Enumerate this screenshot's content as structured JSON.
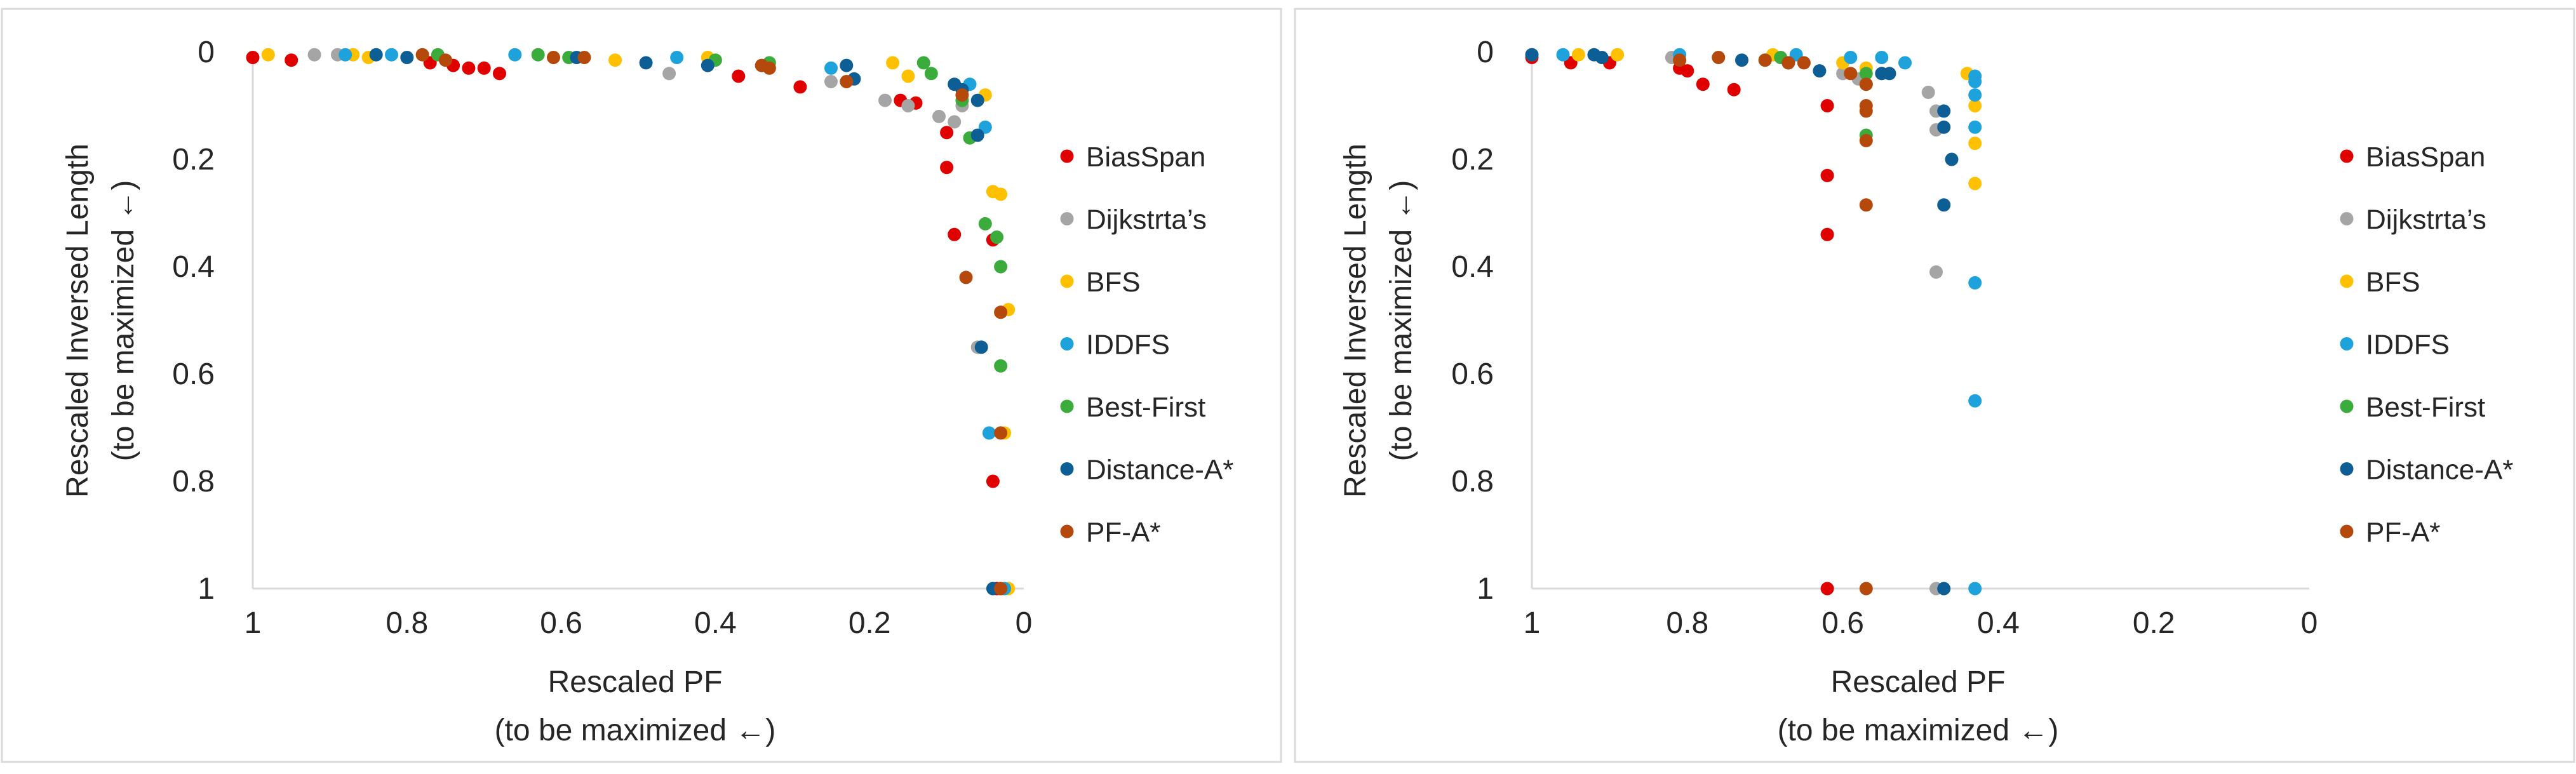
{
  "colors": {
    "BiasSpan": "#e00000",
    "Dijkstrta’s": "#a5a5a5",
    "BFS": "#ffc000",
    "IDDFS": "#1ea2dc",
    "Best-First": "#3bab3b",
    "Distance-A*": "#0e5e96",
    "PF-A*": "#b5490c"
  },
  "chart_data": [
    {
      "type": "scatter",
      "title": "",
      "xlabel_line1": "Rescaled PF",
      "xlabel_line2": "(to be maximized ←)",
      "ylabel_line1": "Rescaled Inversed Length",
      "ylabel_line2": "(to be maximized ←)",
      "x_reversed": true,
      "y_reversed": true,
      "xlim": [
        0,
        1
      ],
      "ylim": [
        0,
        1
      ],
      "x_ticks": [
        "1",
        "0.8",
        "0.6",
        "0.4",
        "0.2",
        "0"
      ],
      "y_ticks": [
        "0",
        "0.2",
        "0.4",
        "0.6",
        "0.8",
        "1"
      ],
      "legend_position": "right",
      "series": [
        {
          "name": "BiasSpan",
          "points": [
            [
              1,
              0.01
            ],
            [
              0.95,
              0.015
            ],
            [
              0.77,
              0.02
            ],
            [
              0.74,
              0.025
            ],
            [
              0.72,
              0.03
            ],
            [
              0.7,
              0.03
            ],
            [
              0.68,
              0.04
            ],
            [
              0.37,
              0.045
            ],
            [
              0.29,
              0.065
            ],
            [
              0.16,
              0.09
            ],
            [
              0.14,
              0.095
            ],
            [
              0.1,
              0.15
            ],
            [
              0.1,
              0.215
            ],
            [
              0.09,
              0.34
            ],
            [
              0.04,
              0.35
            ],
            [
              0.04,
              0.8
            ],
            [
              0.035,
              1.0
            ]
          ]
        },
        {
          "name": "Dijkstrta’s",
          "points": [
            [
              0.92,
              0.005
            ],
            [
              0.89,
              0.005
            ],
            [
              0.46,
              0.04
            ],
            [
              0.25,
              0.055
            ],
            [
              0.18,
              0.09
            ],
            [
              0.15,
              0.1
            ],
            [
              0.11,
              0.12
            ],
            [
              0.09,
              0.13
            ],
            [
              0.08,
              0.1
            ],
            [
              0.06,
              0.55
            ],
            [
              0.03,
              1.0
            ]
          ]
        },
        {
          "name": "BFS",
          "points": [
            [
              0.98,
              0.005
            ],
            [
              0.87,
              0.005
            ],
            [
              0.85,
              0.01
            ],
            [
              0.53,
              0.015
            ],
            [
              0.41,
              0.01
            ],
            [
              0.17,
              0.02
            ],
            [
              0.15,
              0.045
            ],
            [
              0.05,
              0.08
            ],
            [
              0.04,
              0.26
            ],
            [
              0.03,
              0.265
            ],
            [
              0.02,
              0.48
            ],
            [
              0.025,
              0.71
            ],
            [
              0.02,
              1.0
            ]
          ]
        },
        {
          "name": "IDDFS",
          "points": [
            [
              0.88,
              0.005
            ],
            [
              0.82,
              0.005
            ],
            [
              0.66,
              0.005
            ],
            [
              0.45,
              0.01
            ],
            [
              0.25,
              0.03
            ],
            [
              0.07,
              0.06
            ],
            [
              0.05,
              0.14
            ],
            [
              0.045,
              0.71
            ],
            [
              0.025,
              1.0
            ]
          ]
        },
        {
          "name": "Best-First",
          "points": [
            [
              0.76,
              0.005
            ],
            [
              0.63,
              0.005
            ],
            [
              0.59,
              0.01
            ],
            [
              0.4,
              0.015
            ],
            [
              0.33,
              0.02
            ],
            [
              0.13,
              0.02
            ],
            [
              0.12,
              0.04
            ],
            [
              0.08,
              0.09
            ],
            [
              0.07,
              0.16
            ],
            [
              0.05,
              0.32
            ],
            [
              0.035,
              0.345
            ],
            [
              0.03,
              0.4
            ],
            [
              0.03,
              0.585
            ]
          ]
        },
        {
          "name": "Distance-A*",
          "points": [
            [
              0.84,
              0.005
            ],
            [
              0.8,
              0.01
            ],
            [
              0.58,
              0.01
            ],
            [
              0.49,
              0.02
            ],
            [
              0.41,
              0.025
            ],
            [
              0.23,
              0.025
            ],
            [
              0.22,
              0.05
            ],
            [
              0.09,
              0.06
            ],
            [
              0.08,
              0.07
            ],
            [
              0.06,
              0.09
            ],
            [
              0.06,
              0.155
            ],
            [
              0.055,
              0.55
            ],
            [
              0.04,
              1.0
            ]
          ]
        },
        {
          "name": "PF-A*",
          "points": [
            [
              0.78,
              0.005
            ],
            [
              0.75,
              0.015
            ],
            [
              0.61,
              0.01
            ],
            [
              0.57,
              0.01
            ],
            [
              0.34,
              0.025
            ],
            [
              0.33,
              0.03
            ],
            [
              0.23,
              0.055
            ],
            [
              0.08,
              0.08
            ],
            [
              0.075,
              0.42
            ],
            [
              0.03,
              0.485
            ],
            [
              0.03,
              0.71
            ],
            [
              0.03,
              1.0
            ]
          ]
        }
      ]
    },
    {
      "type": "scatter",
      "title": "",
      "xlabel_line1": "Rescaled PF",
      "xlabel_line2": "(to be maximized ←)",
      "ylabel_line1": "Rescaled Inversed Length",
      "ylabel_line2": "(to be maximized ←)",
      "x_reversed": true,
      "y_reversed": true,
      "xlim": [
        0,
        1
      ],
      "ylim": [
        0,
        1
      ],
      "x_ticks": [
        "1",
        "0.8",
        "0.6",
        "0.4",
        "0.2",
        "0"
      ],
      "y_ticks": [
        "0",
        "0.2",
        "0.4",
        "0.6",
        "0.8",
        "1"
      ],
      "legend_position": "right",
      "series": [
        {
          "name": "BiasSpan",
          "points": [
            [
              1,
              0.01
            ],
            [
              0.95,
              0.02
            ],
            [
              0.9,
              0.02
            ],
            [
              0.81,
              0.03
            ],
            [
              0.8,
              0.035
            ],
            [
              0.78,
              0.06
            ],
            [
              0.74,
              0.07
            ],
            [
              0.62,
              0.1
            ],
            [
              0.62,
              0.23
            ],
            [
              0.62,
              0.34
            ],
            [
              0.62,
              1.0
            ]
          ]
        },
        {
          "name": "Dijkstrta’s",
          "points": [
            [
              1,
              0.005
            ],
            [
              0.82,
              0.01
            ],
            [
              0.6,
              0.04
            ],
            [
              0.58,
              0.05
            ],
            [
              0.49,
              0.075
            ],
            [
              0.48,
              0.11
            ],
            [
              0.48,
              0.145
            ],
            [
              0.48,
              0.41
            ],
            [
              0.48,
              1.0
            ]
          ]
        },
        {
          "name": "BFS",
          "points": [
            [
              0.94,
              0.005
            ],
            [
              0.89,
              0.005
            ],
            [
              0.69,
              0.005
            ],
            [
              0.6,
              0.02
            ],
            [
              0.57,
              0.03
            ],
            [
              0.44,
              0.04
            ],
            [
              0.43,
              0.1
            ],
            [
              0.43,
              0.17
            ],
            [
              0.43,
              0.245
            ]
          ]
        },
        {
          "name": "IDDFS",
          "points": [
            [
              0.96,
              0.005
            ],
            [
              0.81,
              0.005
            ],
            [
              0.66,
              0.005
            ],
            [
              0.59,
              0.01
            ],
            [
              0.55,
              0.01
            ],
            [
              0.52,
              0.02
            ],
            [
              0.43,
              0.045
            ],
            [
              0.43,
              0.055
            ],
            [
              0.43,
              0.08
            ],
            [
              0.43,
              0.14
            ],
            [
              0.43,
              0.43
            ],
            [
              0.43,
              0.65
            ],
            [
              0.43,
              1.0
            ]
          ]
        },
        {
          "name": "Best-First",
          "points": [
            [
              0.7,
              0.015
            ],
            [
              0.68,
              0.01
            ],
            [
              0.57,
              0.04
            ],
            [
              0.57,
              0.06
            ],
            [
              0.57,
              0.155
            ]
          ]
        },
        {
          "name": "Distance-A*",
          "points": [
            [
              1,
              0.005
            ],
            [
              0.92,
              0.005
            ],
            [
              0.91,
              0.01
            ],
            [
              0.73,
              0.015
            ],
            [
              0.67,
              0.02
            ],
            [
              0.63,
              0.035
            ],
            [
              0.55,
              0.04
            ],
            [
              0.54,
              0.04
            ],
            [
              0.47,
              0.11
            ],
            [
              0.47,
              0.14
            ],
            [
              0.46,
              0.2
            ],
            [
              0.47,
              0.285
            ],
            [
              0.47,
              1.0
            ]
          ]
        },
        {
          "name": "PF-A*",
          "points": [
            [
              0.81,
              0.015
            ],
            [
              0.76,
              0.01
            ],
            [
              0.7,
              0.015
            ],
            [
              0.67,
              0.02
            ],
            [
              0.65,
              0.02
            ],
            [
              0.59,
              0.04
            ],
            [
              0.57,
              0.06
            ],
            [
              0.57,
              0.1
            ],
            [
              0.57,
              0.11
            ],
            [
              0.57,
              0.165
            ],
            [
              0.57,
              0.285
            ],
            [
              0.57,
              1.0
            ]
          ]
        }
      ]
    }
  ]
}
